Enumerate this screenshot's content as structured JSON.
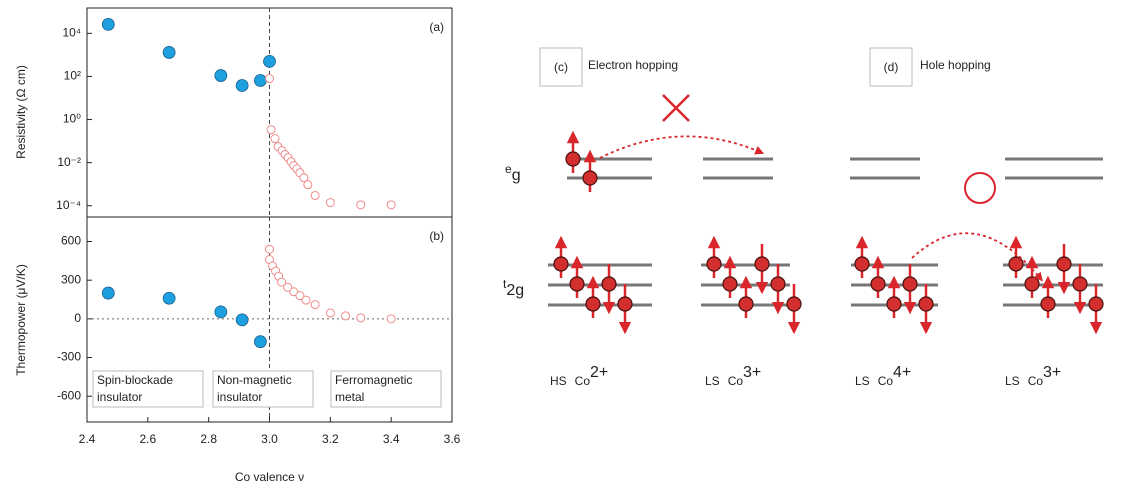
{
  "chart_data": [
    {
      "type": "scatter",
      "title": "(a)",
      "ylabel": "Resistivity (Ω cm)",
      "log_y": true,
      "xlim": [
        2.4,
        3.6
      ],
      "ylim": [
        3e-05,
        150000
      ],
      "yticks": [
        {
          "value": 10000,
          "label": "10⁴"
        },
        {
          "value": 100,
          "label": "10²"
        },
        {
          "value": 1,
          "label": "10⁰"
        },
        {
          "value": 0.01,
          "label": "10⁻²"
        },
        {
          "value": 0.0001,
          "label": "10⁻⁴"
        }
      ],
      "vline": 3,
      "series": [
        {
          "color": "#1e9fe0",
          "marker": "filled",
          "x": [
            2.47,
            2.67,
            2.84,
            2.91,
            2.97,
            3.0
          ],
          "values": [
            26000,
            1300,
            110,
            38,
            65,
            500
          ]
        },
        {
          "color": "#f08a8a",
          "marker": "open",
          "x": [
            3.0,
            3.005,
            3.018,
            3.028,
            3.041,
            3.051,
            3.061,
            3.071,
            3.08,
            3.09,
            3.1,
            3.113,
            3.126,
            3.15,
            3.2,
            3.3,
            3.4
          ],
          "values": [
            80,
            0.34,
            0.13,
            0.055,
            0.036,
            0.024,
            0.017,
            0.011,
            0.0073,
            0.0052,
            0.0034,
            0.002,
            0.00095,
            0.0003,
            0.00014,
            0.00011,
            0.00011
          ]
        }
      ]
    },
    {
      "type": "scatter",
      "title": "(b)",
      "ylabel": "Thermopower (μV/K)",
      "xlabel": "Co valence ν",
      "xlim": [
        2.4,
        3.6
      ],
      "ylim": [
        -800,
        790
      ],
      "xticks": [
        2.4,
        2.6,
        2.8,
        {
          "value": 3,
          "label": "3.0"
        },
        3.2,
        3.4,
        3.6
      ],
      "yticks": [
        600,
        300,
        0,
        -300,
        -600
      ],
      "vline": 3,
      "hline": 0,
      "series": [
        {
          "color": "#1e9fe0",
          "marker": "filled",
          "x": [
            2.47,
            2.67,
            2.84,
            2.91,
            2.97
          ],
          "values": [
            200,
            160,
            54,
            -8,
            -177
          ]
        },
        {
          "color": "#f08a8a",
          "marker": "open",
          "x": [
            3.0,
            3.0,
            3.01,
            3.02,
            3.03,
            3.04,
            3.06,
            3.08,
            3.1,
            3.12,
            3.15,
            3.2,
            3.25,
            3.3,
            3.4
          ],
          "values": [
            540,
            460,
            410,
            370,
            330,
            285,
            245,
            210,
            180,
            145,
            110,
            45,
            23,
            8,
            0
          ]
        }
      ],
      "annotations": [
        {
          "lines": [
            "Spin-blockade",
            "insulator"
          ]
        },
        {
          "lines": [
            "Non-magnetic",
            "insulator"
          ]
        },
        {
          "lines": [
            "Ferromagnetic",
            "metal"
          ]
        }
      ]
    }
  ],
  "diagram": {
    "panels": [
      {
        "label": "(c)",
        "title": "Electron hopping"
      },
      {
        "label": "(d)",
        "title": "Hole hopping"
      }
    ],
    "levels": [
      {
        "base": "e",
        "sub": "g"
      },
      {
        "base": "t",
        "sub": "2g"
      }
    ],
    "ions": [
      {
        "spin": "HS",
        "ion": "Co",
        "charge": "2+"
      },
      {
        "spin": "LS",
        "ion": "Co",
        "charge": "3+"
      },
      {
        "spin": "LS",
        "ion": "Co",
        "charge": "4+"
      },
      {
        "spin": "LS",
        "ion": "Co",
        "charge": "3+"
      }
    ]
  }
}
